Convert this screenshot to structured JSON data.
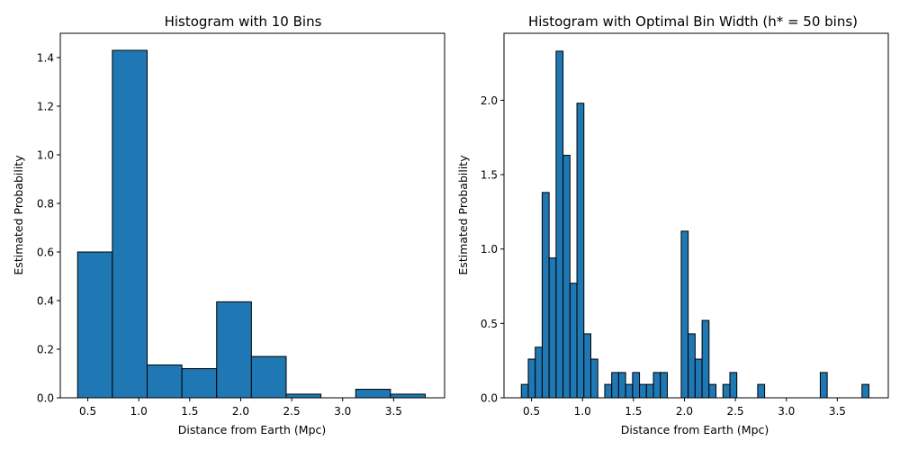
{
  "chart_data": [
    {
      "type": "bar",
      "title": "Histogram with 10 Bins",
      "xlabel": "Distance from Earth (Mpc)",
      "ylabel": "Estimated Probability",
      "xlim": [
        0.23,
        4.0
      ],
      "ylim": [
        0,
        1.5
      ],
      "xticks": [
        0.5,
        1.0,
        1.5,
        2.0,
        2.5,
        3.0,
        3.5
      ],
      "xtick_labels": [
        "0.5",
        "1.0",
        "1.5",
        "2.0",
        "2.5",
        "3.0",
        "3.5"
      ],
      "yticks": [
        0.0,
        0.2,
        0.4,
        0.6,
        0.8,
        1.0,
        1.2,
        1.4
      ],
      "ytick_labels": [
        "0.0",
        "0.2",
        "0.4",
        "0.6",
        "0.8",
        "1.0",
        "1.2",
        "1.4"
      ],
      "bin_start": 0.4,
      "bin_width": 0.341,
      "values": [
        0.6,
        1.43,
        0.135,
        0.12,
        0.395,
        0.17,
        0.015,
        0.0,
        0.035,
        0.015
      ],
      "color": "#1f77b4"
    },
    {
      "type": "bar",
      "title": "Histogram with Optimal Bin Width (h* = 50 bins)",
      "xlabel": "Distance from Earth (Mpc)",
      "ylabel": "Estimated Probability",
      "xlim": [
        0.23,
        4.0
      ],
      "ylim": [
        0,
        2.45
      ],
      "xticks": [
        0.5,
        1.0,
        1.5,
        2.0,
        2.5,
        3.0,
        3.5
      ],
      "xtick_labels": [
        "0.5",
        "1.0",
        "1.5",
        "2.0",
        "2.5",
        "3.0",
        "3.5"
      ],
      "yticks": [
        0.0,
        0.5,
        1.0,
        1.5,
        2.0
      ],
      "ytick_labels": [
        "0.0",
        "0.5",
        "1.0",
        "1.5",
        "2.0"
      ],
      "bin_start": 0.4,
      "bin_width": 0.0682,
      "values": [
        0.09,
        0.26,
        0.34,
        1.38,
        0.94,
        2.33,
        1.63,
        0.77,
        1.98,
        0.43,
        0.26,
        0.0,
        0.09,
        0.17,
        0.17,
        0.09,
        0.17,
        0.09,
        0.09,
        0.17,
        0.17,
        0.0,
        0.0,
        1.12,
        0.43,
        0.26,
        0.52,
        0.09,
        0.0,
        0.09,
        0.17,
        0.0,
        0.0,
        0.0,
        0.09,
        0.0,
        0.0,
        0.0,
        0.0,
        0.0,
        0.0,
        0.0,
        0.0,
        0.17,
        0.0,
        0.0,
        0.0,
        0.0,
        0.0,
        0.09
      ],
      "color": "#1f77b4"
    }
  ]
}
